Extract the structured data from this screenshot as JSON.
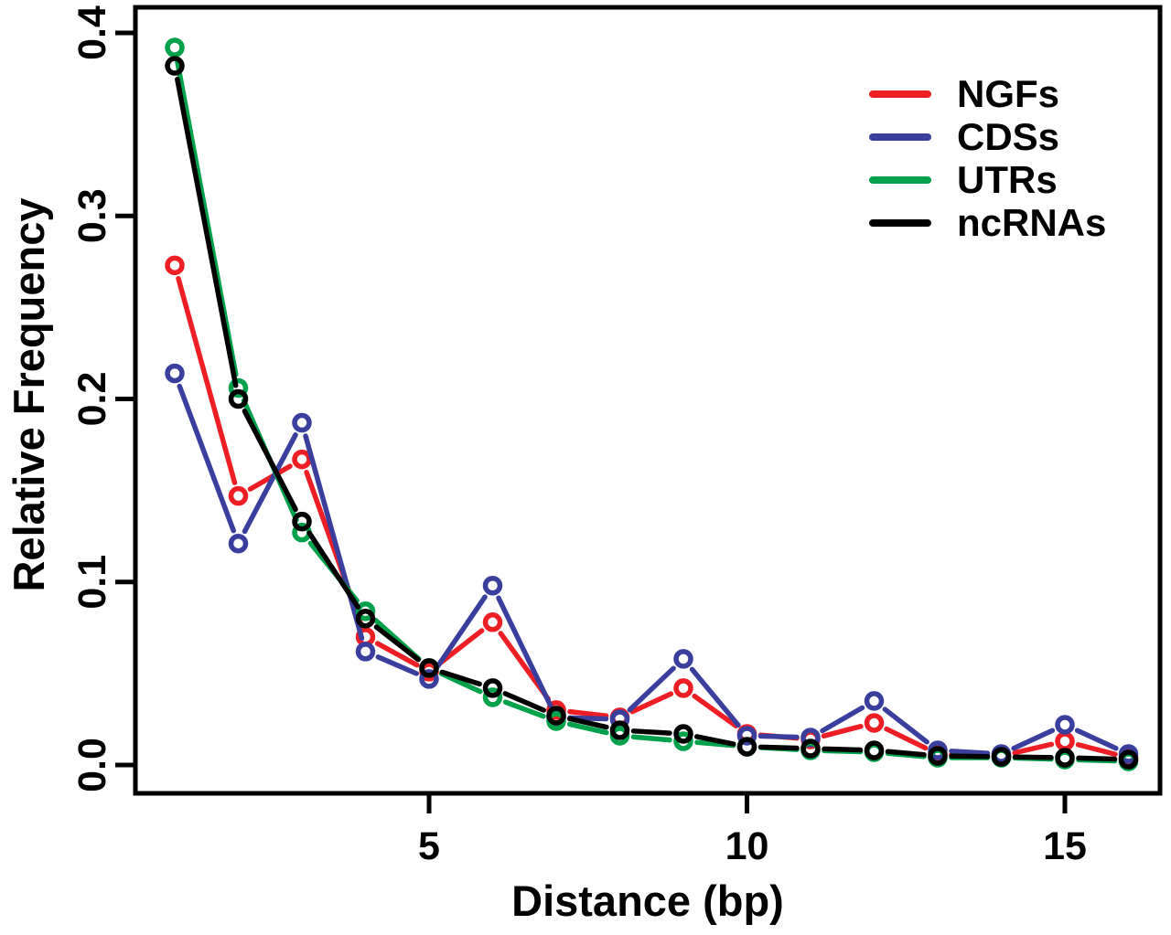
{
  "chart_data": {
    "type": "line",
    "title": "",
    "xlabel": "Distance (bp)",
    "ylabel": "Relative Frequency",
    "grid": false,
    "legend_position": "top-right",
    "marker": "open-circle",
    "xlim": [
      0.4,
      16.5
    ],
    "ylim": [
      0.0,
      0.4
    ],
    "x": [
      1,
      2,
      3,
      4,
      5,
      6,
      7,
      8,
      9,
      10,
      11,
      12,
      13,
      14,
      15,
      16
    ],
    "xticks": {
      "values": [
        5,
        10,
        15
      ],
      "labels": [
        "5",
        "10",
        "15"
      ]
    },
    "yticks": {
      "values": [
        0.0,
        0.1,
        0.2,
        0.3,
        0.4
      ],
      "labels": [
        "0.0",
        "0.1",
        "0.2",
        "0.3",
        "0.4"
      ]
    },
    "series": [
      {
        "name": "NGFs",
        "color": "#ed1f24",
        "values": [
          0.273,
          0.147,
          0.167,
          0.07,
          0.051,
          0.078,
          0.03,
          0.026,
          0.042,
          0.017,
          0.014,
          0.023,
          0.006,
          0.005,
          0.013,
          0.004
        ]
      },
      {
        "name": "CDSs",
        "color": "#3a3f9e",
        "values": [
          0.214,
          0.121,
          0.187,
          0.062,
          0.047,
          0.098,
          0.026,
          0.025,
          0.058,
          0.016,
          0.015,
          0.035,
          0.008,
          0.006,
          0.022,
          0.006
        ]
      },
      {
        "name": "UTRs",
        "color": "#00a14b",
        "values": [
          0.392,
          0.206,
          0.127,
          0.084,
          0.053,
          0.037,
          0.024,
          0.016,
          0.013,
          0.01,
          0.008,
          0.007,
          0.004,
          0.004,
          0.003,
          0.002
        ]
      },
      {
        "name": "ncRNAs",
        "color": "#000000",
        "values": [
          0.382,
          0.2,
          0.133,
          0.08,
          0.053,
          0.042,
          0.027,
          0.019,
          0.017,
          0.01,
          0.009,
          0.008,
          0.005,
          0.0045,
          0.004,
          0.003
        ]
      }
    ]
  }
}
